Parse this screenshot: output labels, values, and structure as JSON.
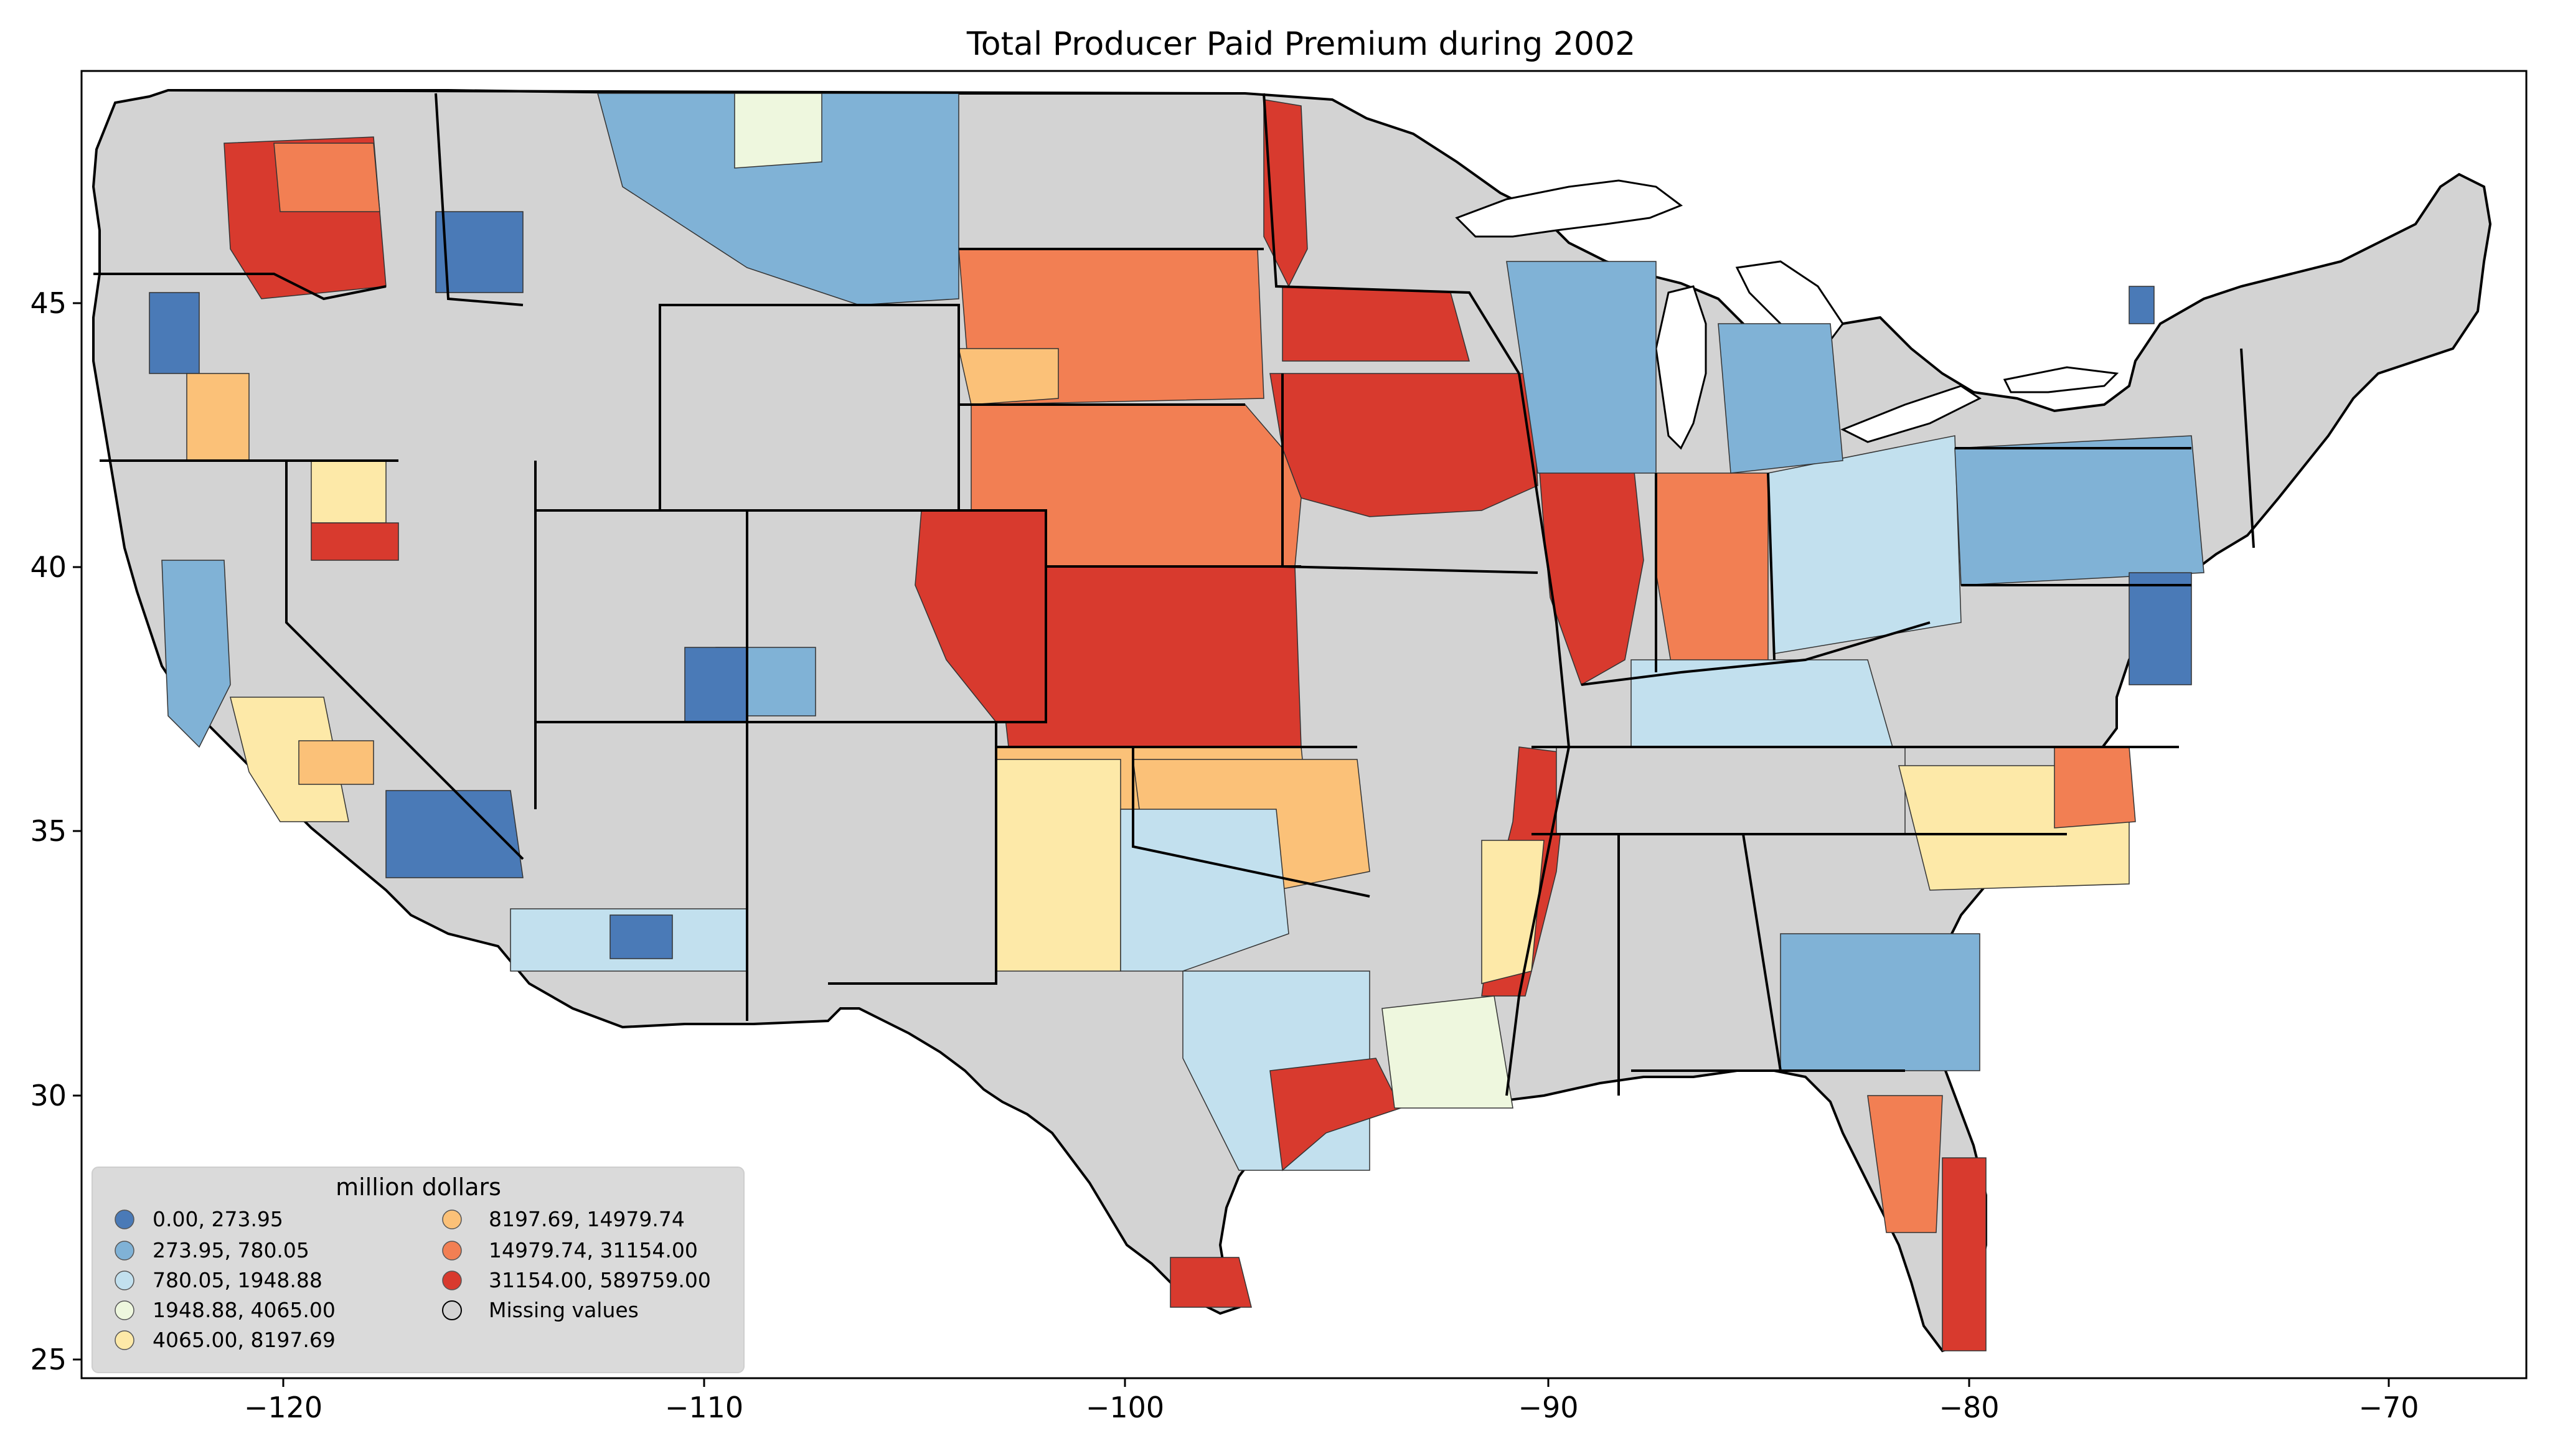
{
  "map": {
    "title": "Total Producer Paid Premium during 2002",
    "x_ticks": [
      "−120",
      "−110",
      "−100",
      "−90",
      "−80",
      "−70"
    ],
    "y_ticks": [
      "45",
      "40",
      "35",
      "30",
      "25"
    ],
    "bin_colors": [
      "#4a7ab7",
      "#80b2d6",
      "#c2e0ee",
      "#eef7de",
      "#fde9a8",
      "#fbc178",
      "#f27f53",
      "#d83a2e"
    ],
    "missing_color": "#d3d3d3",
    "legend": {
      "title": "million dollars",
      "items": [
        {
          "label": "0.00,    273.95",
          "color": "#4a7ab7"
        },
        {
          "label": "273.95,    780.05",
          "color": "#80b2d6"
        },
        {
          "label": "780.05,   1948.88",
          "color": "#c2e0ee"
        },
        {
          "label": "1948.88,   4065.00",
          "color": "#eef7de"
        },
        {
          "label": "4065.00,   8197.69",
          "color": "#fde9a8"
        },
        {
          "label": "8197.69,  14979.74",
          "color": "#fbc178"
        },
        {
          "label": "14979.74,  31154.00",
          "color": "#f27f53"
        },
        {
          "label": "31154.00, 589759.00",
          "color": "#d83a2e"
        },
        {
          "label": "Missing values",
          "color": "#d3d3d3"
        }
      ]
    }
  }
}
